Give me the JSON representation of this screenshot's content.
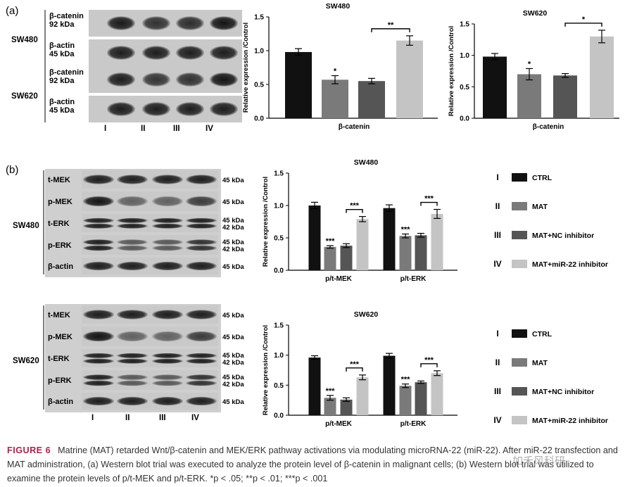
{
  "panel_a": {
    "label": "(a)",
    "blot": {
      "groups": [
        {
          "name": "SW480",
          "rows": [
            {
              "protein": "β-catenin",
              "size": "92 kDa",
              "intensity": [
                0.92,
                0.8,
                0.82,
                0.95
              ]
            },
            {
              "protein": "β-actin",
              "size": "45 kDa",
              "intensity": [
                0.9,
                0.9,
                0.9,
                0.9
              ]
            }
          ]
        },
        {
          "name": "SW620",
          "rows": [
            {
              "protein": "β-catenin",
              "size": "92 kDa",
              "intensity": [
                0.9,
                0.78,
                0.8,
                0.95
              ]
            },
            {
              "protein": "β-actin",
              "size": "45 kDa",
              "intensity": [
                0.9,
                0.9,
                0.9,
                0.9
              ]
            }
          ]
        }
      ],
      "lanes": [
        "I",
        "II",
        "III",
        "IV"
      ]
    }
  },
  "panel_b": {
    "label": "(b)",
    "blots": [
      {
        "name": "SW480",
        "rows": [
          {
            "protein": "t-MEK",
            "size": "45 kDa",
            "double": false,
            "intensity": [
              0.9,
              0.9,
              0.9,
              0.9
            ]
          },
          {
            "protein": "p-MEK",
            "size": "45 kDa",
            "double": false,
            "intensity": [
              0.95,
              0.55,
              0.55,
              0.75
            ]
          },
          {
            "protein": "t-ERK",
            "size": "45 kDa\n42 kDa",
            "double": true,
            "intensity": [
              0.9,
              0.9,
              0.9,
              0.9
            ]
          },
          {
            "protein": "p-ERK",
            "size": "45 kDa\n42 kDa",
            "double": true,
            "intensity": [
              0.9,
              0.6,
              0.6,
              0.8
            ]
          },
          {
            "protein": "β-actin",
            "size": "45 kDa",
            "double": false,
            "intensity": [
              0.9,
              0.9,
              0.9,
              0.9
            ]
          }
        ]
      },
      {
        "name": "SW620",
        "rows": [
          {
            "protein": "t-MEK",
            "size": "45 kDa",
            "double": false,
            "intensity": [
              0.9,
              0.9,
              0.9,
              0.9
            ]
          },
          {
            "protein": "p-MEK",
            "size": "45 kDa",
            "double": false,
            "intensity": [
              0.95,
              0.55,
              0.55,
              0.75
            ]
          },
          {
            "protein": "t-ERK",
            "size": "45 kDa\n42 kDa",
            "double": true,
            "intensity": [
              0.9,
              0.9,
              0.9,
              0.9
            ]
          },
          {
            "protein": "p-ERK",
            "size": "45 kDa\n42 kDa",
            "double": true,
            "intensity": [
              0.9,
              0.6,
              0.6,
              0.8
            ]
          },
          {
            "protein": "β-actin",
            "size": "45 kDa",
            "double": false,
            "intensity": [
              0.9,
              0.9,
              0.9,
              0.9
            ]
          }
        ]
      }
    ],
    "lanes": [
      "I",
      "II",
      "III",
      "IV"
    ]
  },
  "legend": {
    "items": [
      {
        "numeral": "I",
        "label": "CTRL",
        "color": "#111111"
      },
      {
        "numeral": "II",
        "label": "MAT",
        "color": "#7a7a7a"
      },
      {
        "numeral": "III",
        "label": "MAT+NC inhibitor",
        "color": "#555555"
      },
      {
        "numeral": "IV",
        "label": "MAT+miR-22 inhibitor",
        "color": "#c4c4c4"
      }
    ]
  },
  "chart_data": [
    {
      "type": "bar",
      "title": "SW480",
      "ylabel": "Relative expression /Control",
      "ylim": [
        0,
        1.5
      ],
      "yticks": [
        "0.0",
        "0.5",
        "1.0",
        "1.5"
      ],
      "categories": [
        "β-catenin"
      ],
      "series": [
        {
          "name": "CTRL",
          "values": [
            0.98
          ],
          "err": [
            0.05
          ],
          "color": "#111111"
        },
        {
          "name": "MAT",
          "values": [
            0.57
          ],
          "err": [
            0.06
          ],
          "color": "#7a7a7a"
        },
        {
          "name": "MAT+NC inhibitor",
          "values": [
            0.55
          ],
          "err": [
            0.04
          ],
          "color": "#555555"
        },
        {
          "name": "MAT+miR-22 inhibitor",
          "values": [
            1.15
          ],
          "err": [
            0.07
          ],
          "color": "#c4c4c4"
        }
      ],
      "annotations": [
        {
          "text": "*",
          "series": 1
        },
        {
          "text": "**",
          "bracket": [
            2,
            3
          ]
        }
      ]
    },
    {
      "type": "bar",
      "title": "SW620",
      "ylabel": "Relative expression /Control",
      "ylim": [
        0,
        1.5
      ],
      "yticks": [
        "0.0",
        "0.5",
        "1.0",
        "1.5"
      ],
      "categories": [
        "β-catenin"
      ],
      "series": [
        {
          "name": "CTRL",
          "values": [
            0.98
          ],
          "err": [
            0.05
          ],
          "color": "#111111"
        },
        {
          "name": "MAT",
          "values": [
            0.7
          ],
          "err": [
            0.09
          ],
          "color": "#7a7a7a"
        },
        {
          "name": "MAT+NC inhibitor",
          "values": [
            0.68
          ],
          "err": [
            0.03
          ],
          "color": "#555555"
        },
        {
          "name": "MAT+miR-22 inhibitor",
          "values": [
            1.3
          ],
          "err": [
            0.1
          ],
          "color": "#c4c4c4"
        }
      ],
      "annotations": [
        {
          "text": "*",
          "series": 1
        },
        {
          "text": "*",
          "bracket": [
            2,
            3
          ]
        }
      ]
    },
    {
      "type": "bar",
      "title": "SW480",
      "ylabel": "Relative expression /Control",
      "ylim": [
        0,
        1.5
      ],
      "yticks": [
        "0.0",
        "0.5",
        "1.0",
        "1.5"
      ],
      "categories": [
        "p/t-MEK",
        "p/t-ERK"
      ],
      "series": [
        {
          "name": "CTRL",
          "values": [
            1.0,
            0.96
          ],
          "err": [
            0.05,
            0.05
          ],
          "color": "#111111"
        },
        {
          "name": "MAT",
          "values": [
            0.36,
            0.53
          ],
          "err": [
            0.02,
            0.03
          ],
          "color": "#7a7a7a"
        },
        {
          "name": "MAT+NC inhibitor",
          "values": [
            0.38,
            0.54
          ],
          "err": [
            0.03,
            0.03
          ],
          "color": "#555555"
        },
        {
          "name": "MAT+miR-22 inhibitor",
          "values": [
            0.79,
            0.87
          ],
          "err": [
            0.04,
            0.07
          ],
          "color": "#c4c4c4"
        }
      ],
      "annotations": [
        {
          "text": "***",
          "series": 1,
          "category": 0
        },
        {
          "text": "***",
          "bracket": [
            2,
            3
          ],
          "category": 0
        },
        {
          "text": "***",
          "series": 1,
          "category": 1
        },
        {
          "text": "***",
          "bracket": [
            2,
            3
          ],
          "category": 1
        }
      ]
    },
    {
      "type": "bar",
      "title": "SW620",
      "ylabel": "Relative expression /Control",
      "ylim": [
        0,
        1.5
      ],
      "yticks": [
        "0.0",
        "0.5",
        "1.0",
        "1.5"
      ],
      "categories": [
        "p/t-MEK",
        "p/t-ERK"
      ],
      "series": [
        {
          "name": "CTRL",
          "values": [
            0.96,
            0.99
          ],
          "err": [
            0.03,
            0.04
          ],
          "color": "#111111"
        },
        {
          "name": "MAT",
          "values": [
            0.29,
            0.49
          ],
          "err": [
            0.04,
            0.03
          ],
          "color": "#7a7a7a"
        },
        {
          "name": "MAT+NC inhibitor",
          "values": [
            0.26,
            0.55
          ],
          "err": [
            0.03,
            0.02
          ],
          "color": "#555555"
        },
        {
          "name": "MAT+miR-22 inhibitor",
          "values": [
            0.63,
            0.7
          ],
          "err": [
            0.04,
            0.04
          ],
          "color": "#c4c4c4"
        }
      ],
      "annotations": [
        {
          "text": "***",
          "series": 1,
          "category": 0
        },
        {
          "text": "***",
          "bracket": [
            2,
            3
          ],
          "category": 0
        },
        {
          "text": "***",
          "series": 1,
          "category": 1
        },
        {
          "text": "***",
          "bracket": [
            2,
            3
          ],
          "category": 1
        }
      ]
    }
  ],
  "caption": {
    "label": "FIGURE 6",
    "text": "Matrine (MAT) retarded Wnt/β-catenin and MEK/ERK pathway activations via modulating microRNA-22 (miR-22). After miR-22 transfection and MAT administration, (a) Western blot trial was executed to analyze the protein level of β-catenin in malignant cells; (b) Western blot trial was utilized to examine the protein levels of p/t-MEK and p/t-ERK. *p < .05; **p < .01; ***p < .001"
  },
  "watermark": "如禾风科研"
}
